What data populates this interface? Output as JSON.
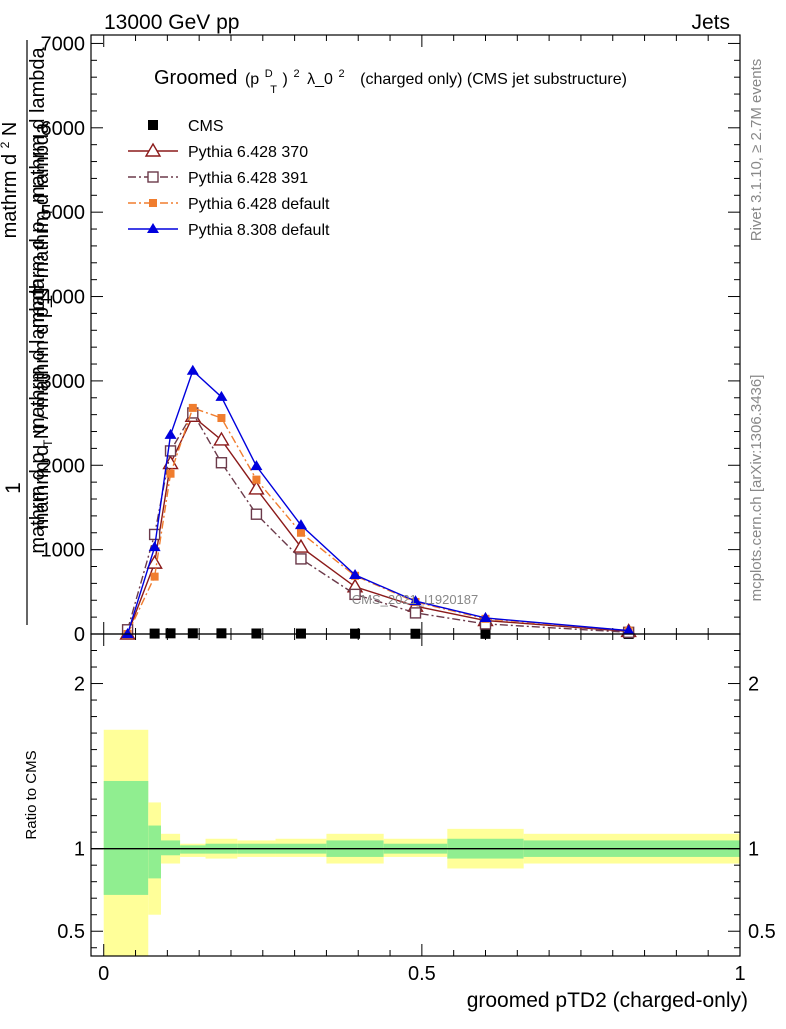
{
  "header": {
    "left": "13000 GeV pp",
    "right": "Jets"
  },
  "title_main": "Groomed",
  "title_math": "(p",
  "title_math_sup": "D",
  "title_math_sub": "T",
  "title_math_close": ")",
  "title_math_exp": "2",
  "title_lambda": "λ_0",
  "title_lambda_exp": "2",
  "title_rest": "(charged only) (CMS jet substructure)",
  "ylabel_top_num": "1",
  "ylabel_top_den": "mathrm d N / mathrm d p_T mathrm d lambda",
  "ylabel_top_line1": "mathrm d",
  "ylabel_top_line1_sup": "2",
  "ylabel_top_line1_end": "N",
  "ylabel_top_line2": "mathrm d p",
  "ylabel_top_line2_sub": "T",
  "ylabel_top_line2_end": "mathrm d lambda",
  "ylabel_top_frac2": "mathrm d p",
  "ylabel_top_frac2_sub": "T",
  "ylabel_top_frac2_end": "mathrm d lambda",
  "ylabel_bottom": "Ratio to CMS",
  "xlabel": "groomed pTD2 (charged-only)",
  "watermark": "CMS_2021_I1920187",
  "side_rivet": "Rivet 3.1.10, ≥ 2.7M events",
  "side_mcplots": "mcplots.cern.ch [arXiv:1306.3436]",
  "colors": {
    "cms": "#000000",
    "p370": "#8b1a1a",
    "p391": "#6b3a4a",
    "p6def": "#f07d2e",
    "p8def": "#0000dd",
    "band_inner": "#90ee90",
    "band_outer": "#ffff99"
  },
  "chart_data": [
    {
      "type": "line",
      "xlim": [
        -0.02,
        1.0
      ],
      "ylim": [
        0,
        7100
      ],
      "yticks": [
        0,
        1000,
        2000,
        3000,
        4000,
        5000,
        6000,
        7000
      ],
      "ytick_labels": [
        "0",
        "1000",
        "2000",
        "3000",
        "4000",
        "5000",
        "6000",
        "7000"
      ],
      "legend_position": "top-left",
      "series": [
        {
          "name": "CMS",
          "marker": "filled-square",
          "x": [
            0.0375,
            0.08,
            0.105,
            0.14,
            0.185,
            0.24,
            0.31,
            0.395,
            0.49,
            0.6,
            0.825
          ],
          "y": [
            0,
            5,
            8,
            8,
            8,
            6,
            5,
            4,
            3,
            2,
            1
          ]
        },
        {
          "name": "Pythia 6.428 370",
          "marker": "open-triangle",
          "x": [
            0.0375,
            0.08,
            0.105,
            0.14,
            0.185,
            0.24,
            0.31,
            0.395,
            0.49,
            0.6,
            0.825
          ],
          "y": [
            0,
            840,
            2020,
            2580,
            2300,
            1720,
            1030,
            560,
            330,
            160,
            30
          ]
        },
        {
          "name": "Pythia 6.428 391",
          "marker": "open-square",
          "x": [
            0.0375,
            0.08,
            0.105,
            0.14,
            0.185,
            0.24,
            0.31,
            0.395,
            0.49,
            0.6,
            0.825
          ],
          "y": [
            50,
            1180,
            2170,
            2620,
            2030,
            1420,
            890,
            470,
            250,
            120,
            20
          ]
        },
        {
          "name": "Pythia 6.428 default",
          "marker": "filled-square-small",
          "x": [
            0.0375,
            0.08,
            0.105,
            0.14,
            0.185,
            0.24,
            0.31,
            0.395,
            0.49,
            0.6,
            0.825
          ],
          "y": [
            0,
            680,
            1900,
            2680,
            2560,
            1830,
            1200,
            690,
            380,
            180,
            40
          ]
        },
        {
          "name": "Pythia 8.308 default",
          "marker": "filled-triangle",
          "x": [
            0.0375,
            0.08,
            0.105,
            0.14,
            0.185,
            0.24,
            0.31,
            0.395,
            0.49,
            0.6,
            0.825
          ],
          "y": [
            0,
            1030,
            2360,
            3120,
            2810,
            1990,
            1290,
            700,
            390,
            190,
            40
          ]
        }
      ]
    },
    {
      "type": "area",
      "xlim": [
        -0.02,
        1.0
      ],
      "ylim": [
        0.35,
        2.3
      ],
      "yticks": [
        0.5,
        1,
        2
      ],
      "ytick_labels": [
        "0.5",
        "1",
        "2"
      ],
      "xticks": [
        0,
        0.5,
        1
      ],
      "xtick_labels": [
        "0",
        "0.5",
        "1"
      ],
      "reference_line": 1,
      "bins": [
        {
          "x0": 0.0,
          "x1": 0.07,
          "inner": [
            0.72,
            1.41
          ],
          "outer": [
            0.35,
            1.72
          ]
        },
        {
          "x0": 0.07,
          "x1": 0.09,
          "inner": [
            0.82,
            1.14
          ],
          "outer": [
            0.6,
            1.28
          ]
        },
        {
          "x0": 0.09,
          "x1": 0.12,
          "inner": [
            0.96,
            1.05
          ],
          "outer": [
            0.91,
            1.09
          ]
        },
        {
          "x0": 0.12,
          "x1": 0.16,
          "inner": [
            0.97,
            1.02
          ],
          "outer": [
            0.95,
            1.03
          ]
        },
        {
          "x0": 0.16,
          "x1": 0.21,
          "inner": [
            0.97,
            1.03
          ],
          "outer": [
            0.94,
            1.06
          ]
        },
        {
          "x0": 0.21,
          "x1": 0.27,
          "inner": [
            0.97,
            1.03
          ],
          "outer": [
            0.95,
            1.05
          ]
        },
        {
          "x0": 0.27,
          "x1": 0.35,
          "inner": [
            0.97,
            1.03
          ],
          "outer": [
            0.95,
            1.06
          ]
        },
        {
          "x0": 0.35,
          "x1": 0.44,
          "inner": [
            0.95,
            1.05
          ],
          "outer": [
            0.91,
            1.09
          ]
        },
        {
          "x0": 0.44,
          "x1": 0.54,
          "inner": [
            0.97,
            1.03
          ],
          "outer": [
            0.95,
            1.06
          ]
        },
        {
          "x0": 0.54,
          "x1": 0.66,
          "inner": [
            0.94,
            1.06
          ],
          "outer": [
            0.88,
            1.12
          ]
        },
        {
          "x0": 0.66,
          "x1": 1.0,
          "inner": [
            0.95,
            1.05
          ],
          "outer": [
            0.91,
            1.09
          ]
        }
      ]
    }
  ]
}
